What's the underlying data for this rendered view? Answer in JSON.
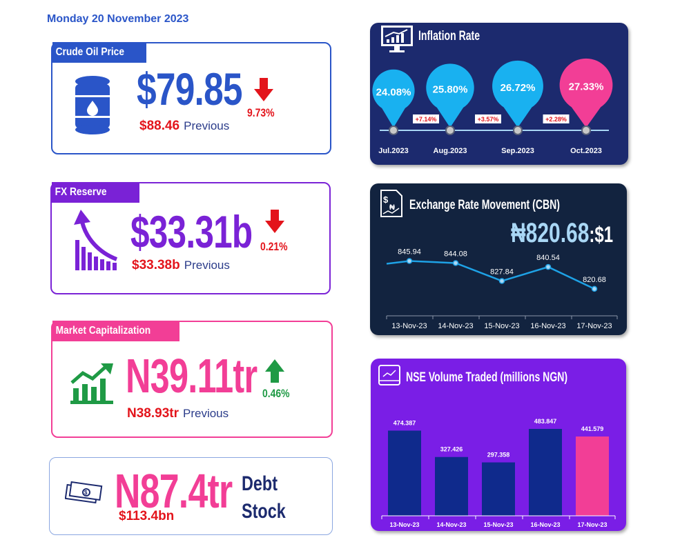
{
  "date": "Monday 20 November 2023",
  "crude_oil": {
    "tag": "Crude Oil Price",
    "value": "$79.85",
    "change": "9.73%",
    "previous_value": "$88.46",
    "previous_label": "Previous",
    "accent": "#2a55c8",
    "direction": "down"
  },
  "fx_reserve": {
    "tag": "FX Reserve",
    "value": "$33.31b",
    "change": "0.21%",
    "previous_value": "$33.38b",
    "previous_label": "Previous",
    "accent": "#7a22d6",
    "direction": "down"
  },
  "market_cap": {
    "tag": "Market Capitalization",
    "value": "N39.11tr",
    "change": "0.46%",
    "previous_value": "N38.93tr",
    "previous_label": "Previous",
    "accent": "#f23e96",
    "direction": "up"
  },
  "debt_stock": {
    "value": "N87.4tr",
    "label_line1": "Debt",
    "label_line2": "Stock",
    "sub_value": "$113.4bn",
    "accent": "#f23e96"
  },
  "colors": {
    "down": "#e3141b",
    "up": "#1f9a45",
    "navy": "#1c2a6e",
    "dark_panel": "#12233f",
    "purple_panel": "#7a1ee6"
  },
  "chart_data": [
    {
      "type": "line",
      "title": "Inflation Rate",
      "categories": [
        "Jul.2023",
        "Aug.2023",
        "Sep.2023",
        "Oct.2023"
      ],
      "values": [
        24.08,
        25.8,
        26.72,
        27.33
      ],
      "labels": [
        "24.08%",
        "25.80%",
        "26.72%",
        "27.33%"
      ],
      "changes": [
        "+7.14%",
        "+3.57%",
        "+2.28%"
      ]
    },
    {
      "type": "line",
      "title": "Exchange Rate Movement (CBN)",
      "headline": "₦820.68",
      "headline_suffix": ":$1",
      "categories": [
        "13-Nov-23",
        "14-Nov-23",
        "15-Nov-23",
        "16-Nov-23",
        "17-Nov-23"
      ],
      "values": [
        845.94,
        844.08,
        827.84,
        840.54,
        820.68
      ],
      "labels": [
        "845.94",
        "844.08",
        "827.84",
        "840.54",
        "820.68"
      ]
    },
    {
      "type": "bar",
      "title": "NSE Volume Traded (millions NGN)",
      "categories": [
        "13-Nov-23",
        "14-Nov-23",
        "15-Nov-23",
        "16-Nov-23",
        "17-Nov-23"
      ],
      "values": [
        474.387,
        327.426,
        297.358,
        483.847,
        441.579
      ],
      "labels": [
        "474.387",
        "327.426",
        "297.358",
        "483.847",
        "441.579"
      ],
      "ylim": [
        0,
        500
      ]
    }
  ]
}
